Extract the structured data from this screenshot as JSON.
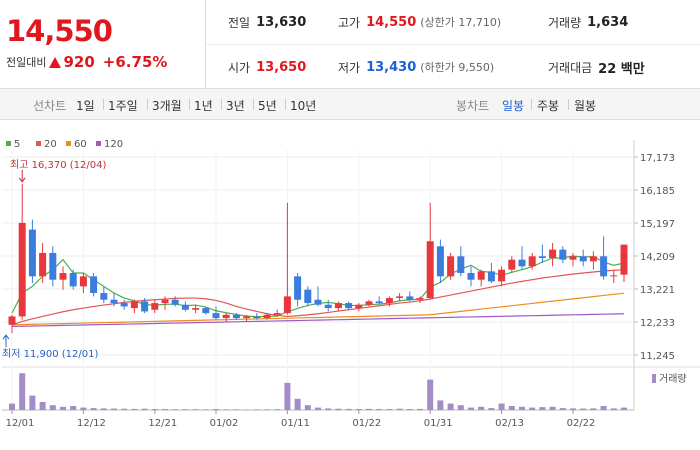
{
  "header": {
    "price": "14,550",
    "change_label": "전일대비",
    "change": "920",
    "change_pct": "+6.75%",
    "stats": [
      {
        "label": "전일",
        "value": "13,630"
      },
      {
        "label": "고가",
        "value": "14,550",
        "note": "(상한가 17,710)"
      },
      {
        "label": "거래량",
        "value": "1,634"
      },
      {
        "label": "시가",
        "value": "13,650"
      },
      {
        "label": "저가",
        "value": "13,430",
        "note": "(하한가 9,550)"
      },
      {
        "label": "거래대금",
        "value": "22 백만"
      }
    ]
  },
  "tabs": {
    "line_label": "선차트",
    "line": [
      "1일",
      "1주일",
      "3개월",
      "1년",
      "3년",
      "5년",
      "10년"
    ],
    "candle_label": "봉차트",
    "candle": [
      "일봉",
      "주봉",
      "월봉"
    ]
  },
  "chart_data": {
    "type": "candlestick",
    "categories": [
      "12/01",
      null,
      null,
      null,
      null,
      null,
      null,
      "12/12",
      null,
      null,
      null,
      null,
      null,
      null,
      "12/21",
      null,
      null,
      null,
      null,
      null,
      "01/02",
      null,
      null,
      null,
      null,
      null,
      null,
      "01/11",
      null,
      null,
      null,
      null,
      null,
      null,
      "01/22",
      null,
      null,
      null,
      null,
      null,
      null,
      "01/31",
      null,
      null,
      null,
      null,
      null,
      null,
      "02/13",
      null,
      null,
      null,
      null,
      null,
      null,
      "02/22",
      null,
      null,
      null,
      null,
      null
    ],
    "open": [
      12150,
      12400,
      15000,
      13600,
      14300,
      13500,
      13700,
      13300,
      13600,
      13100,
      12900,
      12800,
      12650,
      12850,
      12600,
      12800,
      12900,
      12750,
      12600,
      12650,
      12500,
      12350,
      12450,
      12350,
      12400,
      12350,
      12450,
      12500,
      13600,
      13200,
      12900,
      12750,
      12650,
      12800,
      12650,
      12750,
      12850,
      12800,
      12950,
      13000,
      12900,
      12950,
      14500,
      13600,
      14200,
      13700,
      13500,
      13750,
      13450,
      13800,
      14100,
      13900,
      14200,
      14150,
      14400,
      14100,
      14200,
      14050,
      14200,
      13600,
      13650
    ],
    "high": [
      12450,
      16370,
      15300,
      14600,
      14500,
      13900,
      13800,
      13700,
      13700,
      13300,
      13100,
      12900,
      12900,
      12950,
      12900,
      13000,
      13000,
      12850,
      12750,
      12700,
      12700,
      12500,
      12500,
      12450,
      12500,
      12500,
      12600,
      15800,
      13700,
      13300,
      13300,
      12900,
      12850,
      12850,
      12800,
      12900,
      13000,
      13000,
      13100,
      13150,
      13000,
      15800,
      14700,
      14300,
      14500,
      13900,
      13800,
      14000,
      13900,
      14200,
      14500,
      14300,
      14550,
      14600,
      14500,
      14300,
      14400,
      14350,
      14800,
      13800,
      14550
    ],
    "low": [
      11900,
      12300,
      13400,
      13400,
      13300,
      13200,
      13200,
      13100,
      13000,
      12800,
      12700,
      12600,
      12500,
      12500,
      12500,
      12600,
      12700,
      12550,
      12500,
      12450,
      12300,
      12250,
      12300,
      12250,
      12300,
      12300,
      12400,
      12450,
      12700,
      12700,
      12700,
      12550,
      12550,
      12600,
      12550,
      12700,
      12750,
      12700,
      12850,
      12850,
      12800,
      12900,
      13400,
      13500,
      13600,
      13300,
      13300,
      13400,
      13300,
      13700,
      13800,
      13800,
      14000,
      13900,
      14000,
      13900,
      13900,
      13800,
      13500,
      13400,
      13430
    ],
    "close": [
      12400,
      15200,
      13600,
      14300,
      13500,
      13700,
      13300,
      13600,
      13100,
      12900,
      12800,
      12700,
      12850,
      12550,
      12800,
      12900,
      12750,
      12600,
      12650,
      12500,
      12350,
      12450,
      12350,
      12400,
      12350,
      12450,
      12500,
      13000,
      12900,
      12800,
      12750,
      12650,
      12800,
      12650,
      12750,
      12850,
      12800,
      12950,
      13000,
      12900,
      12950,
      14650,
      13600,
      14200,
      13700,
      13500,
      13750,
      13450,
      13800,
      14100,
      13900,
      14200,
      14150,
      14400,
      14100,
      14200,
      14050,
      14200,
      13600,
      13630,
      14550
    ],
    "up_color": "#e8383d",
    "down_color": "#3b7ddd",
    "ma": [
      {
        "name": "5",
        "color": "#4caf50",
        "values": [
          12500,
          13100,
          13300,
          13600,
          13800,
          14100,
          13700,
          13700,
          13500,
          13300,
          13100,
          12950,
          12870,
          12750,
          12740,
          12760,
          12770,
          12720,
          12740,
          12680,
          12570,
          12510,
          12460,
          12410,
          12390,
          12400,
          12410,
          12540,
          12640,
          12730,
          12790,
          12820,
          12780,
          12730,
          12730,
          12750,
          12770,
          12800,
          12870,
          12900,
          12920,
          13280,
          13420,
          13670,
          13820,
          13930,
          13750,
          13720,
          13640,
          13720,
          13800,
          13890,
          14030,
          14150,
          14150,
          14210,
          14180,
          14190,
          14030,
          13930,
          14000
        ]
      },
      {
        "name": "20",
        "color": "#e05656",
        "values": [
          12150,
          12250,
          12330,
          12400,
          12470,
          12540,
          12600,
          12650,
          12700,
          12740,
          12780,
          12820,
          12850,
          12880,
          12900,
          12920,
          12940,
          12950,
          12950,
          12930,
          12880,
          12800,
          12700,
          12620,
          12550,
          12480,
          12430,
          12400,
          12420,
          12450,
          12480,
          12520,
          12560,
          12600,
          12640,
          12680,
          12720,
          12760,
          12800,
          12830,
          12870,
          12920,
          12980,
          13040,
          13100,
          13160,
          13220,
          13280,
          13340,
          13400,
          13450,
          13500,
          13550,
          13590,
          13630,
          13670,
          13700,
          13730,
          13760,
          13780,
          13800
        ]
      },
      {
        "name": "60",
        "color": "#f08c1a",
        "values": [
          12150,
          12157,
          12165,
          12172,
          12180,
          12187,
          12194,
          12201,
          12209,
          12216,
          12223,
          12230,
          12238,
          12245,
          12252,
          12260,
          12267,
          12274,
          12282,
          12289,
          12296,
          12303,
          12311,
          12318,
          12325,
          12333,
          12340,
          12347,
          12355,
          12362,
          12369,
          12376,
          12384,
          12391,
          12398,
          12406,
          12413,
          12420,
          12428,
          12435,
          12442,
          12450,
          12484,
          12518,
          12552,
          12586,
          12620,
          12654,
          12688,
          12722,
          12756,
          12790,
          12824,
          12858,
          12892,
          12926,
          12960,
          12994,
          13028,
          13062,
          13096
        ]
      },
      {
        "name": "120",
        "color": "#9a5bc9",
        "values": [
          12100,
          12106,
          12113,
          12119,
          12125,
          12132,
          12138,
          12144,
          12151,
          12157,
          12163,
          12170,
          12176,
          12182,
          12189,
          12195,
          12201,
          12208,
          12214,
          12220,
          12227,
          12233,
          12239,
          12246,
          12252,
          12258,
          12265,
          12271,
          12277,
          12284,
          12290,
          12296,
          12303,
          12309,
          12315,
          12322,
          12328,
          12334,
          12341,
          12347,
          12353,
          12360,
          12366,
          12372,
          12379,
          12385,
          12391,
          12398,
          12404,
          12410,
          12417,
          12423,
          12429,
          12436,
          12442,
          12448,
          12455,
          12461,
          12467,
          12474,
          12480
        ]
      }
    ],
    "volume": {
      "name": "거래량",
      "color": "#a48cc8",
      "ylim": [
        0,
        2500000
      ],
      "values": [
        400000,
        2300000,
        900000,
        500000,
        300000,
        200000,
        250000,
        150000,
        120000,
        100000,
        90000,
        80000,
        70000,
        80000,
        60000,
        60000,
        50000,
        50000,
        50000,
        40000,
        60000,
        40000,
        40000,
        30000,
        40000,
        40000,
        50000,
        1700000,
        700000,
        300000,
        150000,
        100000,
        80000,
        70000,
        60000,
        70000,
        60000,
        60000,
        80000,
        60000,
        70000,
        1900000,
        600000,
        400000,
        300000,
        150000,
        200000,
        120000,
        400000,
        250000,
        200000,
        150000,
        180000,
        200000,
        120000,
        100000,
        90000,
        100000,
        250000,
        100000,
        150000
      ]
    },
    "ylim": [
      10946,
      17383
    ],
    "yticks": [
      {
        "value": 11245,
        "label": "11,245"
      },
      {
        "value": 12233,
        "label": "12,233"
      },
      {
        "value": 13221,
        "label": "13,221"
      },
      {
        "value": 14209,
        "label": "14,209"
      },
      {
        "value": 15197,
        "label": "15,197"
      },
      {
        "value": 16185,
        "label": "16,185"
      },
      {
        "value": 17173,
        "label": "17,173"
      }
    ],
    "annotations": {
      "high": "최고 16,370 (12/04)",
      "low": "최저 11,900 (12/01)"
    }
  }
}
